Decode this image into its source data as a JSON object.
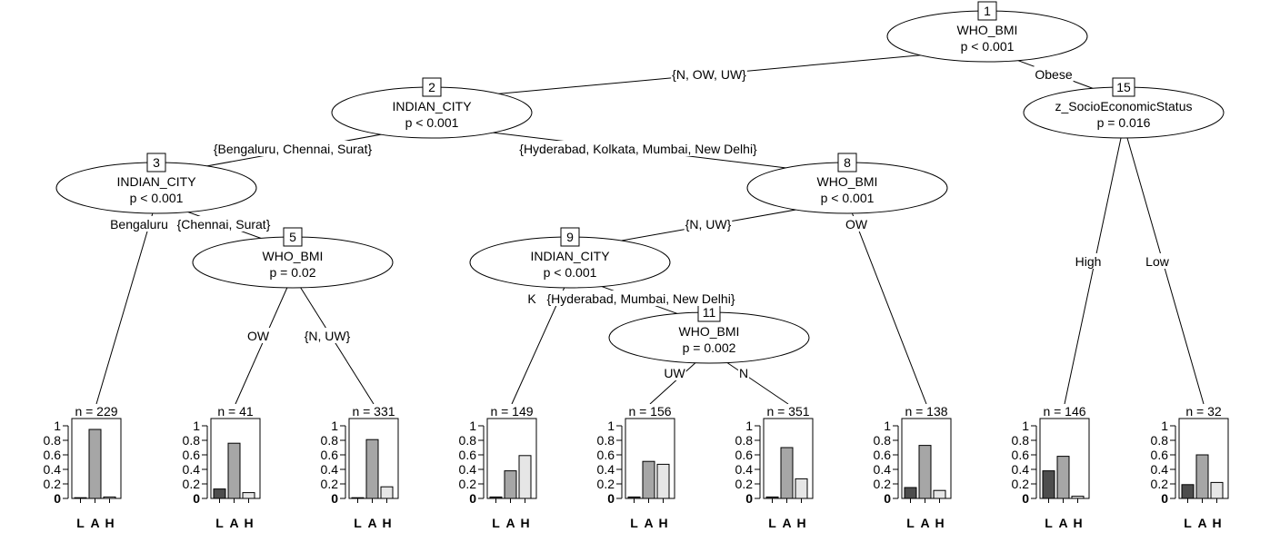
{
  "tree": {
    "categories": [
      "L",
      "A",
      "H"
    ],
    "bar_colors": [
      "#4d4d4d",
      "#a6a6a6",
      "#e6e6e6"
    ],
    "y_ticks": [
      "0",
      "0.2",
      "0.4",
      "0.6",
      "0.8",
      "1"
    ],
    "nodes": [
      {
        "id": "1",
        "var": "WHO_BMI",
        "p": "p < 0.001"
      },
      {
        "id": "2",
        "var": "INDIAN_CITY",
        "p": "p < 0.001"
      },
      {
        "id": "3",
        "var": "INDIAN_CITY",
        "p": "p < 0.001"
      },
      {
        "id": "5",
        "var": "WHO_BMI",
        "p": "p = 0.02"
      },
      {
        "id": "8",
        "var": "WHO_BMI",
        "p": "p < 0.001"
      },
      {
        "id": "9",
        "var": "INDIAN_CITY",
        "p": "p < 0.001"
      },
      {
        "id": "11",
        "var": "WHO_BMI",
        "p": "p = 0.002"
      },
      {
        "id": "15",
        "var": "z_SocioEconomicStatus",
        "p": "p = 0.016"
      }
    ],
    "edge_labels": [
      {
        "id": "e1-2",
        "text": "{N, OW, UW}"
      },
      {
        "id": "e1-15",
        "text": "Obese"
      },
      {
        "id": "e2-3",
        "text": "{Bengaluru, Chennai, Surat}"
      },
      {
        "id": "e2-8",
        "text": "{Hyderabad, Kolkata, Mumbai, New Delhi}"
      },
      {
        "id": "e3-4",
        "text": "Bengaluru"
      },
      {
        "id": "e3-5",
        "text": "{Chennai, Surat}"
      },
      {
        "id": "e5-6",
        "text": "OW"
      },
      {
        "id": "e5-7",
        "text": "{N, UW}"
      },
      {
        "id": "e8-9",
        "text": "{N, UW}"
      },
      {
        "id": "e8-14",
        "text": "OW"
      },
      {
        "id": "e9-10",
        "text": "K"
      },
      {
        "id": "e9-11",
        "text": "{Hyderabad, Mumbai, New Delhi}"
      },
      {
        "id": "e11-12",
        "text": "UW"
      },
      {
        "id": "e11-13",
        "text": "N"
      },
      {
        "id": "e15-16",
        "text": "High"
      },
      {
        "id": "e15-17",
        "text": "Low"
      }
    ],
    "terminals": [
      {
        "n": "n = 229",
        "values": [
          0.01,
          0.95,
          0.02
        ]
      },
      {
        "n": "n = 41",
        "values": [
          0.13,
          0.76,
          0.08
        ]
      },
      {
        "n": "n = 331",
        "values": [
          0.01,
          0.81,
          0.16
        ]
      },
      {
        "n": "n = 149",
        "values": [
          0.02,
          0.38,
          0.59
        ]
      },
      {
        "n": "n = 156",
        "values": [
          0.02,
          0.51,
          0.47
        ]
      },
      {
        "n": "n = 351",
        "values": [
          0.02,
          0.7,
          0.27
        ]
      },
      {
        "n": "n = 138",
        "values": [
          0.15,
          0.73,
          0.11
        ]
      },
      {
        "n": "n = 146",
        "values": [
          0.38,
          0.58,
          0.03
        ]
      },
      {
        "n": "n = 32",
        "values": [
          0.19,
          0.6,
          0.22
        ]
      }
    ]
  }
}
